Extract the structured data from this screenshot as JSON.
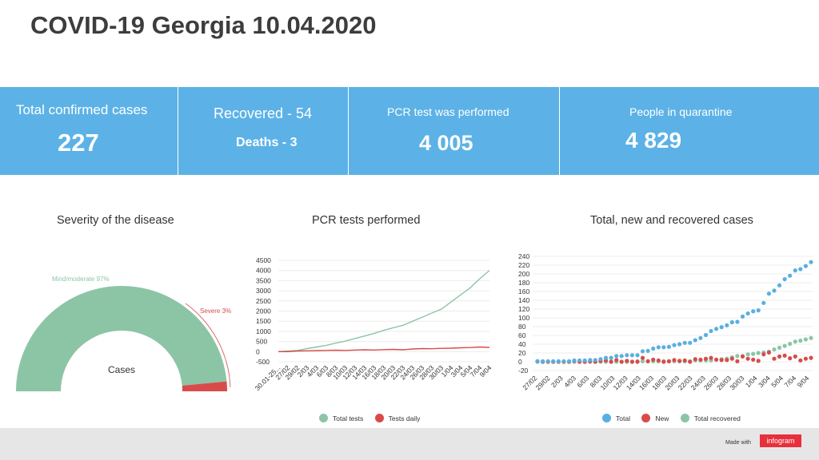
{
  "page_title": "COVID-19 Georgia 10.04.2020",
  "stats": {
    "confirmed_label": "Total confirmed cases",
    "confirmed_value": "227",
    "recovered_label": "Recovered - 54",
    "deaths_label": "Deaths - 3",
    "pcr_label": "PCR test was performed",
    "pcr_value": "4 005",
    "quarantine_label": "People in quarantine",
    "quarantine_value": "4 829"
  },
  "colors": {
    "stats_bg": "#5cb2e6",
    "green": "#8cc5a6",
    "red": "#d94b4b",
    "blue": "#5aafe0"
  },
  "footer": {
    "made_with": "Made with",
    "brand": "infogram"
  },
  "chart_data": [
    {
      "type": "pie",
      "title": "Severity of the disease",
      "center_label": "Cases",
      "slices": [
        {
          "label": "Mind/moderate 97%",
          "value": 97,
          "color": "#8cc5a6"
        },
        {
          "label": "Severe 3%",
          "value": 3,
          "color": "#d94b4b"
        }
      ]
    },
    {
      "type": "line",
      "title": "PCR tests performed",
      "y_ticks": [
        "4500",
        "4000",
        "3500",
        "3000",
        "2500",
        "2000",
        "1500",
        "1000",
        "500",
        "0",
        "-500"
      ],
      "ylim": [
        -500,
        4500
      ],
      "x_labels": [
        "30.01-25...",
        "27/02",
        "29/02",
        "2/03",
        "4/03",
        "6/03",
        "8/03",
        "10/03",
        "12/03",
        "14/03",
        "16/03",
        "18/03",
        "20/03",
        "22/03",
        "24/03",
        "26/03",
        "28/03",
        "30/03",
        "1/04",
        "3/04",
        "5/04",
        "7/04",
        "9/04"
      ],
      "series": [
        {
          "name": "Total tests",
          "color": "#8cc5a6",
          "values": [
            0,
            30,
            60,
            150,
            230,
            310,
            420,
            520,
            650,
            770,
            900,
            1050,
            1180,
            1300,
            1500,
            1700,
            1900,
            2100,
            2450,
            2800,
            3150,
            3600,
            4005
          ]
        },
        {
          "name": "Tests daily",
          "color": "#d94b4b",
          "values": [
            0,
            0,
            30,
            40,
            50,
            60,
            70,
            60,
            80,
            90,
            80,
            100,
            110,
            90,
            130,
            150,
            140,
            160,
            170,
            190,
            200,
            230,
            210
          ]
        }
      ]
    },
    {
      "type": "scatter",
      "title": "Total, new and recovered cases",
      "y_ticks": [
        "240",
        "220",
        "200",
        "180",
        "160",
        "140",
        "120",
        "100",
        "80",
        "60",
        "40",
        "20",
        "0",
        "-20"
      ],
      "ylim": [
        -20,
        240
      ],
      "x_labels": [
        "27/02",
        "29/02",
        "2/03",
        "4/03",
        "6/03",
        "8/03",
        "10/03",
        "12/03",
        "14/03",
        "16/03",
        "18/03",
        "20/03",
        "22/03",
        "24/03",
        "26/03",
        "28/03",
        "30/03",
        "1/04",
        "3/04",
        "5/04",
        "7/04",
        "9/04"
      ],
      "series": [
        {
          "name": "Total",
          "color": "#5aafe0",
          "values": [
            1,
            1,
            1,
            1,
            1,
            1,
            1,
            3,
            3,
            3,
            4,
            4,
            6,
            9,
            9,
            13,
            13,
            15,
            15,
            15,
            24,
            25,
            30,
            33,
            33,
            34,
            38,
            40,
            43,
            43,
            49,
            54,
            61,
            70,
            75,
            79,
            83,
            90,
            91,
            103,
            110,
            115,
            117,
            134,
            155,
            162,
            174,
            188,
            196,
            208,
            211,
            218,
            227
          ]
        },
        {
          "name": "New",
          "color": "#d94b4b",
          "values": [
            1,
            0,
            0,
            0,
            0,
            0,
            0,
            2,
            0,
            0,
            1,
            0,
            2,
            3,
            0,
            4,
            0,
            2,
            0,
            0,
            9,
            1,
            5,
            3,
            0,
            1,
            4,
            2,
            3,
            0,
            6,
            5,
            7,
            9,
            5,
            4,
            4,
            7,
            1,
            12,
            7,
            5,
            2,
            17,
            21,
            7,
            12,
            14,
            8,
            12,
            3,
            7,
            9
          ]
        },
        {
          "name": "Total recovered",
          "color": "#8cc5a6",
          "values": [
            0,
            0,
            0,
            0,
            0,
            0,
            0,
            0,
            0,
            0,
            0,
            0,
            0,
            0,
            0,
            0,
            0,
            0,
            0,
            1,
            1,
            1,
            1,
            1,
            1,
            1,
            1,
            1,
            1,
            1,
            3,
            3,
            3,
            3,
            5,
            6,
            7,
            10,
            13,
            13,
            17,
            18,
            20,
            21,
            23,
            28,
            32,
            36,
            41,
            46,
            48,
            51,
            54
          ]
        }
      ]
    }
  ]
}
